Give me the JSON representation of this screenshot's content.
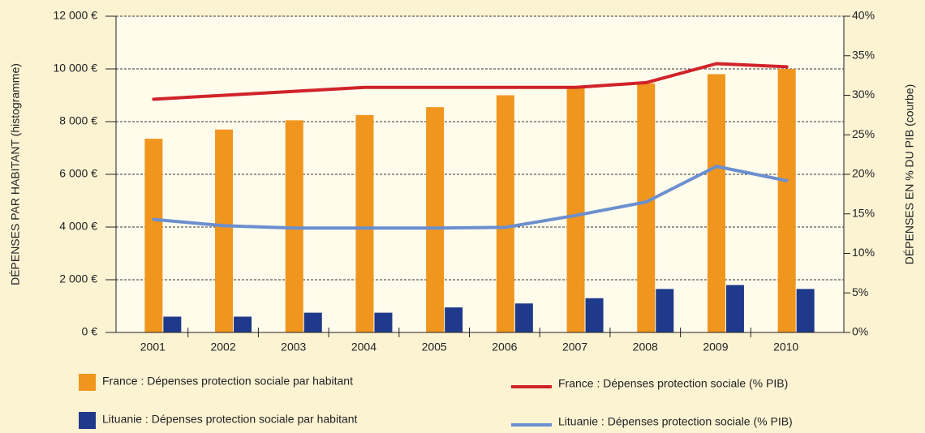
{
  "chart_data": {
    "type": "bar",
    "ylabel": "DÉPENSES PAR HABITANT (histogramme)",
    "y2label": "DÉPENSES EN % DU PIB (courbe)",
    "categories": [
      "2001",
      "2002",
      "2003",
      "2004",
      "2005",
      "2006",
      "2007",
      "2008",
      "2009",
      "2010"
    ],
    "series": [
      {
        "name": "France : Dépenses protection sociale par habitant",
        "type": "bar",
        "color": "#f0961e",
        "values": [
          7350,
          7700,
          8050,
          8250,
          8550,
          9000,
          9300,
          9450,
          9800,
          10000
        ]
      },
      {
        "name": "Lituanie : Dépenses protection sociale par habitant",
        "type": "bar",
        "color": "#1f3a8a",
        "values": [
          600,
          600,
          750,
          750,
          950,
          1100,
          1300,
          1650,
          1800,
          1650
        ]
      },
      {
        "name": "France : Dépenses protection sociale (% PIB)",
        "type": "line",
        "axis": "y2",
        "color": "#d1232a",
        "values": [
          29.5,
          30,
          30.5,
          31,
          31,
          31,
          31,
          31.6,
          34,
          33.6
        ]
      },
      {
        "name": "Lituanie : Dépenses protection sociale (% PIB)",
        "type": "line",
        "axis": "y2",
        "color": "#6b8fcf",
        "values": [
          14.3,
          13.5,
          13.2,
          13.2,
          13.2,
          13.3,
          14.8,
          16.5,
          21,
          19.2
        ]
      }
    ],
    "ylim": [
      0,
      12000
    ],
    "yticks": [
      {
        "value": 0,
        "label": "0 €"
      },
      {
        "value": 2000,
        "label": "2 000 €"
      },
      {
        "value": 4000,
        "label": "4 000 €"
      },
      {
        "value": 6000,
        "label": "6 000 €"
      },
      {
        "value": 8000,
        "label": "8 000 €"
      },
      {
        "value": 10000,
        "label": "10 000 €"
      },
      {
        "value": 12000,
        "label": "12 000 €"
      }
    ],
    "y2lim": [
      0,
      40
    ],
    "y2ticks": [
      {
        "value": 0,
        "label": "0%"
      },
      {
        "value": 5,
        "label": "5%"
      },
      {
        "value": 10,
        "label": "10%"
      },
      {
        "value": 15,
        "label": "15%"
      },
      {
        "value": 20,
        "label": "20%"
      },
      {
        "value": 25,
        "label": "25%"
      },
      {
        "value": 30,
        "label": "30%"
      },
      {
        "value": 35,
        "label": "35%"
      },
      {
        "value": 40,
        "label": "40%"
      }
    ],
    "grid": true
  }
}
